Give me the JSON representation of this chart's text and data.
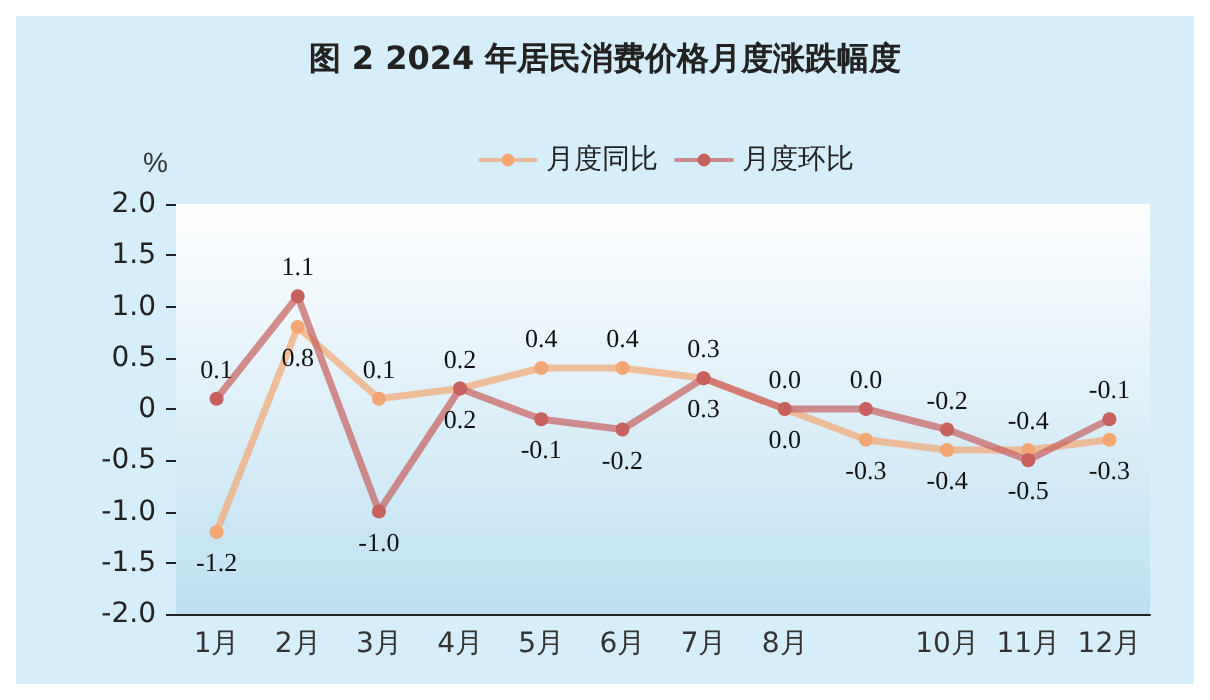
{
  "chart_data": {
    "type": "line",
    "title": "图 2 2024 年居民消费价格月度涨跌幅度",
    "ylabel": "%",
    "categories": [
      "1月",
      "2月",
      "3月",
      "4月",
      "5月",
      "6月",
      "7月",
      "8月",
      null,
      "10月",
      "11月",
      "12月"
    ],
    "series": [
      {
        "name": "月度同比",
        "color": "#f3a671",
        "values": [
          -1.2,
          0.8,
          0.1,
          0.2,
          0.4,
          0.4,
          0.3,
          0.0,
          -0.3,
          -0.4,
          -0.4,
          -0.3
        ],
        "value_labels": [
          "-1.2",
          "0.8",
          "0.1",
          "0.2",
          "0.4",
          "0.4",
          "0.3",
          "0.0",
          "-0.3",
          "-0.4",
          "-0.4",
          "-0.3"
        ]
      },
      {
        "name": "月度环比",
        "color": "#c8605e",
        "values": [
          0.1,
          1.1,
          -1.0,
          0.2,
          -0.1,
          -0.2,
          0.3,
          0.0,
          0.0,
          -0.2,
          -0.5,
          -0.1
        ],
        "value_labels": [
          "0.1",
          "1.1",
          "-1.0",
          "0.2",
          "-0.1",
          "-0.2",
          "0.3",
          "0.0",
          "0.0",
          "-0.2",
          "-0.5",
          "-0.1"
        ]
      }
    ],
    "ylim": [
      -2.0,
      2.0
    ],
    "yticks": [
      {
        "value": -2,
        "label": "-2.0"
      },
      {
        "value": -1.5,
        "label": "-1.5"
      },
      {
        "value": -1,
        "label": "-1.0"
      },
      {
        "value": -0.5,
        "label": "-0.5"
      },
      {
        "value": 0,
        "label": "0"
      },
      {
        "value": 0.5,
        "label": "0.5"
      },
      {
        "value": 1,
        "label": "1.0"
      },
      {
        "value": 1.5,
        "label": "1.5"
      },
      {
        "value": 2,
        "label": "2.0"
      }
    ],
    "legend": "top right",
    "marker": "circle",
    "line_style": "solid"
  }
}
